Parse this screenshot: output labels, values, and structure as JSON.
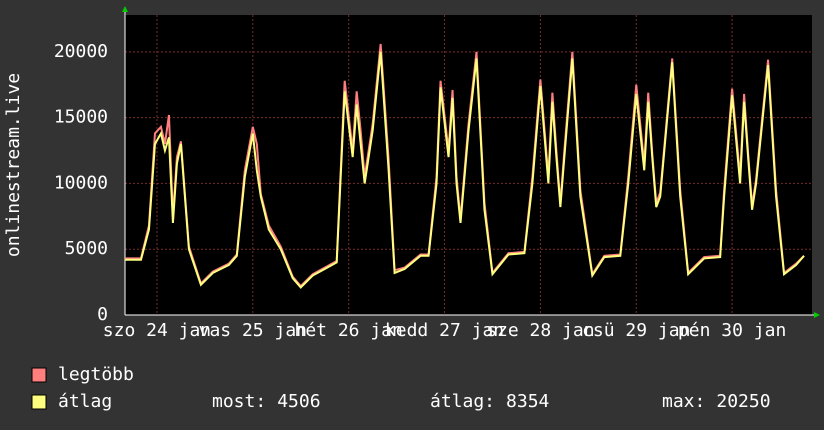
{
  "chart_data": {
    "type": "line",
    "y_label": "onlinestream.live",
    "x": [
      0,
      4,
      6,
      7.5,
      9,
      10,
      11,
      12,
      13,
      14,
      16,
      19,
      22,
      26,
      28,
      30,
      32,
      33,
      34,
      36,
      39,
      42,
      44,
      47,
      50,
      53,
      55,
      57,
      58,
      59,
      60,
      62,
      64,
      66,
      67.5,
      70,
      74,
      76,
      78,
      79,
      81,
      82,
      83,
      84,
      86,
      88,
      90,
      92,
      96,
      100,
      102,
      104,
      106,
      107,
      108,
      109,
      110,
      112,
      114,
      117,
      120,
      124,
      126,
      128,
      130,
      131,
      132,
      133,
      134,
      137,
      139,
      141,
      145,
      149,
      150,
      152,
      154,
      155,
      156,
      157,
      158,
      161,
      163,
      165,
      168,
      170
    ],
    "series": [
      {
        "name": "legtöbb",
        "color": "#ff7f7f",
        "values": [
          4300,
          4300,
          6800,
          13800,
          14300,
          13000,
          15200,
          7500,
          12000,
          13200,
          5200,
          2400,
          3300,
          3900,
          4600,
          11000,
          14300,
          13000,
          9200,
          6800,
          5200,
          2900,
          2200,
          3100,
          3600,
          4100,
          17800,
          12500,
          17000,
          14000,
          10500,
          14500,
          20600,
          11800,
          3400,
          3600,
          4600,
          4600,
          10500,
          17800,
          12500,
          17100,
          10500,
          7300,
          14500,
          20000,
          8500,
          3200,
          4700,
          4800,
          10500,
          17900,
          10500,
          16900,
          12500,
          8500,
          12500,
          20000,
          9500,
          3100,
          4500,
          4600,
          10500,
          17500,
          11500,
          16900,
          12300,
          8500,
          9300,
          19500,
          9500,
          3200,
          4400,
          4500,
          9500,
          17200,
          10500,
          16800,
          12300,
          8300,
          10300,
          19400,
          9500,
          3200,
          3900,
          4500
        ]
      },
      {
        "name": "átlag",
        "color": "#ffff7f",
        "values": [
          4200,
          4200,
          6500,
          13000,
          13800,
          12500,
          13500,
          7000,
          11500,
          13000,
          5000,
          2300,
          3200,
          3800,
          4500,
          10500,
          13800,
          11000,
          9000,
          6500,
          5000,
          2800,
          2100,
          3000,
          3500,
          4000,
          17000,
          12000,
          16000,
          13000,
          10000,
          14000,
          20000,
          11000,
          3200,
          3500,
          4500,
          4500,
          10000,
          17300,
          12000,
          16500,
          10000,
          7000,
          14000,
          19500,
          8000,
          3100,
          4600,
          4700,
          10000,
          17400,
          10000,
          16200,
          12000,
          8200,
          12000,
          19500,
          9000,
          3000,
          4400,
          4500,
          10000,
          16800,
          11000,
          16200,
          12000,
          8200,
          9000,
          19200,
          9000,
          3100,
          4300,
          4400,
          9000,
          16700,
          10000,
          16200,
          12000,
          8000,
          10000,
          19000,
          9000,
          3100,
          3800,
          4500
        ]
      }
    ],
    "xlim": [
      0,
      172
    ],
    "xticks": [
      {
        "value": 8,
        "label": "szo 24 jan"
      },
      {
        "value": 32,
        "label": "vas 25 jan"
      },
      {
        "value": 56,
        "label": "hét 26 jan"
      },
      {
        "value": 80,
        "label": "kedd 27 jan"
      },
      {
        "value": 104,
        "label": "sze 28 jan"
      },
      {
        "value": 128,
        "label": "csü 29 jan"
      },
      {
        "value": 152,
        "label": "pén 30 jan"
      }
    ],
    "ylim": [
      0,
      22800
    ],
    "yticks": [
      0,
      5000,
      10000,
      15000,
      20000
    ],
    "grid": true,
    "stats": [
      {
        "label": "most:",
        "value": 4506
      },
      {
        "label": "átlag:",
        "value": 8354
      },
      {
        "label": "max:",
        "value": 20250
      }
    ]
  }
}
